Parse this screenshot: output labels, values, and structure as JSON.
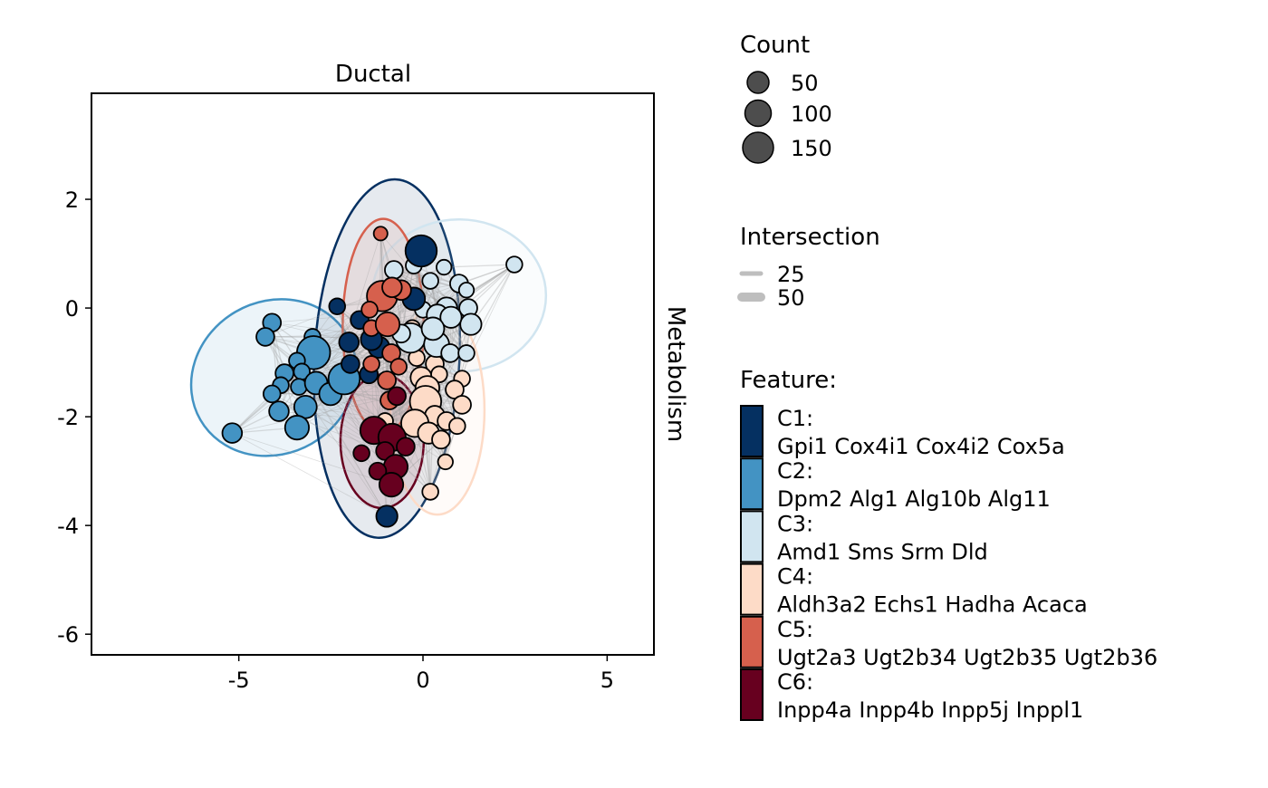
{
  "chart_data": {
    "type": "scatter",
    "title": "Ductal",
    "strip_label_right": "Metabolism",
    "xlabel": "",
    "ylabel": "",
    "xlim": [
      -9.0,
      6.27
    ],
    "ylim": [
      -6.38,
      3.95
    ],
    "x_ticks": [
      -5,
      0,
      5
    ],
    "x_tick_labels": [
      "-5",
      "0",
      "5"
    ],
    "y_ticks": [
      2,
      0,
      -2,
      -4,
      -6
    ],
    "y_tick_labels": [
      "2",
      "0",
      "-2",
      "-4",
      "-6"
    ],
    "grid": false,
    "legend_count": {
      "title": "Count",
      "entries": [
        {
          "label": "50",
          "value": 50
        },
        {
          "label": "100",
          "value": 100
        },
        {
          "label": "150",
          "value": 150
        }
      ],
      "color": "#4D4D4D"
    },
    "legend_intersection": {
      "title": "Intersection",
      "entries": [
        {
          "label": "25",
          "value": 25
        },
        {
          "label": "50",
          "value": 50
        }
      ],
      "color": "#BEBEBE"
    },
    "legend_feature": {
      "title": "Feature:",
      "entries": [
        {
          "id": "C1",
          "label": "C1:",
          "genes": "Gpi1 Cox4i1 Cox4i2 Cox5a",
          "color": "#053061"
        },
        {
          "id": "C2",
          "label": "C2:",
          "genes": "Dpm2 Alg1 Alg10b Alg11",
          "color": "#4393C3"
        },
        {
          "id": "C3",
          "label": "C3:",
          "genes": "Amd1 Sms Srm Dld",
          "color": "#D1E5F0"
        },
        {
          "id": "C4",
          "label": "C4:",
          "genes": "Aldh3a2 Echs1 Hadha Acaca",
          "color": "#FDDBC7"
        },
        {
          "id": "C5",
          "label": "C5:",
          "genes": "Ugt2a3 Ugt2b34 Ugt2b35 Ugt2b36",
          "color": "#D6604D"
        },
        {
          "id": "C6",
          "label": "C6:",
          "genes": "Inpp4a Inpp4b Inpp5j Inppl1",
          "color": "#67001F"
        }
      ]
    },
    "ellipses": [
      {
        "cluster": "C2",
        "cx": -4.05,
        "cy": -1.28,
        "a": 2.3,
        "b": 1.4,
        "angle": -30,
        "color": "#4393C3",
        "fill_opacity": 0.1
      },
      {
        "cluster": "C1",
        "cx": -0.98,
        "cy": -0.93,
        "a": 1.97,
        "b": 3.3,
        "angle": 3,
        "color": "#053061",
        "fill_opacity": 0.1
      },
      {
        "cluster": "C3",
        "cx": 0.98,
        "cy": 0.23,
        "a": 2.36,
        "b": 1.4,
        "angle": 0,
        "color": "#D1E5F0",
        "fill_opacity": 0.1
      },
      {
        "cluster": "C5",
        "cx": -1.08,
        "cy": -0.33,
        "a": 1.1,
        "b": 1.97,
        "angle": 0,
        "color": "#D6604D",
        "fill_opacity": 0.1
      },
      {
        "cluster": "C4",
        "cx": 0.39,
        "cy": -1.88,
        "a": 1.28,
        "b": 1.92,
        "angle": 0,
        "color": "#FDDBC7",
        "fill_opacity": 0.1
      },
      {
        "cluster": "C6",
        "cx": -1.11,
        "cy": -2.45,
        "a": 1.13,
        "b": 1.23,
        "angle": 0,
        "color": "#67001F",
        "fill_opacity": 0.1
      }
    ],
    "points": [
      {
        "c": "C2",
        "x": -4.1,
        "y": -0.27,
        "n": 40
      },
      {
        "c": "C2",
        "x": -4.28,
        "y": -0.53,
        "n": 40
      },
      {
        "c": "C2",
        "x": -3.0,
        "y": -0.53,
        "n": 30
      },
      {
        "c": "C2",
        "x": -2.97,
        "y": -0.82,
        "n": 170
      },
      {
        "c": "C2",
        "x": -3.42,
        "y": -0.97,
        "n": 30
      },
      {
        "c": "C2",
        "x": -3.29,
        "y": -1.17,
        "n": 30
      },
      {
        "c": "C2",
        "x": -3.76,
        "y": -1.2,
        "n": 40
      },
      {
        "c": "C2",
        "x": -3.86,
        "y": -1.42,
        "n": 30
      },
      {
        "c": "C2",
        "x": -3.37,
        "y": -1.45,
        "n": 30
      },
      {
        "c": "C2",
        "x": -2.9,
        "y": -1.38,
        "n": 70
      },
      {
        "c": "C2",
        "x": -4.1,
        "y": -1.58,
        "n": 35
      },
      {
        "c": "C2",
        "x": -2.51,
        "y": -1.58,
        "n": 70
      },
      {
        "c": "C2",
        "x": -2.14,
        "y": -1.3,
        "n": 150
      },
      {
        "c": "C2",
        "x": -3.19,
        "y": -1.82,
        "n": 70
      },
      {
        "c": "C2",
        "x": -3.91,
        "y": -1.9,
        "n": 50
      },
      {
        "c": "C2",
        "x": -3.42,
        "y": -2.2,
        "n": 80
      },
      {
        "c": "C2",
        "x": -5.18,
        "y": -2.3,
        "n": 50
      },
      {
        "c": "C4",
        "x": -0.29,
        "y": -0.37,
        "n": 30
      },
      {
        "c": "C4",
        "x": -0.17,
        "y": -0.92,
        "n": 30
      },
      {
        "c": "C4",
        "x": 0.32,
        "y": -1.03,
        "n": 40
      },
      {
        "c": "C4",
        "x": -0.05,
        "y": -1.28,
        "n": 60
      },
      {
        "c": "C4",
        "x": 0.44,
        "y": -1.22,
        "n": 30
      },
      {
        "c": "C4",
        "x": 1.06,
        "y": -1.3,
        "n": 30
      },
      {
        "c": "C4",
        "x": 0.86,
        "y": -1.5,
        "n": 40
      },
      {
        "c": "C4",
        "x": 0.12,
        "y": -1.47,
        "n": 80
      },
      {
        "c": "C4",
        "x": 0.07,
        "y": -1.72,
        "n": 150
      },
      {
        "c": "C4",
        "x": 1.06,
        "y": -1.78,
        "n": 40
      },
      {
        "c": "C4",
        "x": 0.32,
        "y": -1.98,
        "n": 50
      },
      {
        "c": "C4",
        "x": -0.22,
        "y": -2.12,
        "n": 110
      },
      {
        "c": "C4",
        "x": 0.64,
        "y": -2.08,
        "n": 40
      },
      {
        "c": "C4",
        "x": 0.93,
        "y": -2.17,
        "n": 30
      },
      {
        "c": "C4",
        "x": -1.03,
        "y": -2.08,
        "n": 30
      },
      {
        "c": "C4",
        "x": 0.15,
        "y": -2.3,
        "n": 60
      },
      {
        "c": "C4",
        "x": 0.49,
        "y": -2.42,
        "n": 40
      },
      {
        "c": "C4",
        "x": 0.61,
        "y": -2.83,
        "n": 25
      },
      {
        "c": "C4",
        "x": 0.2,
        "y": -3.38,
        "n": 30
      },
      {
        "c": "C3",
        "x": 2.48,
        "y": 0.8,
        "n": 30
      },
      {
        "c": "C3",
        "x": -0.79,
        "y": 0.7,
        "n": 40
      },
      {
        "c": "C3",
        "x": -0.25,
        "y": 0.78,
        "n": 30
      },
      {
        "c": "C3",
        "x": 0.57,
        "y": 0.75,
        "n": 25
      },
      {
        "c": "C3",
        "x": 0.2,
        "y": 0.5,
        "n": 30
      },
      {
        "c": "C3",
        "x": 0.98,
        "y": 0.45,
        "n": 40
      },
      {
        "c": "C3",
        "x": 1.18,
        "y": 0.33,
        "n": 25
      },
      {
        "c": "C3",
        "x": 0.0,
        "y": -0.03,
        "n": 30
      },
      {
        "c": "C3",
        "x": 0.64,
        "y": 0.0,
        "n": 60
      },
      {
        "c": "C3",
        "x": 1.23,
        "y": 0.0,
        "n": 40
      },
      {
        "c": "C3",
        "x": 1.3,
        "y": -0.3,
        "n": 60
      },
      {
        "c": "C3",
        "x": 0.39,
        "y": -0.13,
        "n": 60
      },
      {
        "c": "C3",
        "x": 0.76,
        "y": -0.17,
        "n": 60
      },
      {
        "c": "C3",
        "x": -0.34,
        "y": -0.55,
        "n": 130
      },
      {
        "c": "C3",
        "x": 0.37,
        "y": -0.67,
        "n": 90
      },
      {
        "c": "C3",
        "x": 0.74,
        "y": -0.83,
        "n": 40
      },
      {
        "c": "C3",
        "x": 1.18,
        "y": -0.83,
        "n": 30
      },
      {
        "c": "C3",
        "x": 0.27,
        "y": -0.38,
        "n": 70
      },
      {
        "c": "C3",
        "x": -0.59,
        "y": -0.47,
        "n": 40
      },
      {
        "c": "C1",
        "x": -0.05,
        "y": 1.05,
        "n": 150
      },
      {
        "c": "C1",
        "x": -2.33,
        "y": 0.03,
        "n": 30
      },
      {
        "c": "C1",
        "x": -1.72,
        "y": -0.22,
        "n": 40
      },
      {
        "c": "C1",
        "x": -2.01,
        "y": -0.63,
        "n": 50
      },
      {
        "c": "C1",
        "x": -1.97,
        "y": -1.03,
        "n": 40
      },
      {
        "c": "C1",
        "x": -1.47,
        "y": -1.22,
        "n": 40
      },
      {
        "c": "C1",
        "x": -1.2,
        "y": -0.72,
        "n": 60
      },
      {
        "c": "C1",
        "x": -0.25,
        "y": 0.17,
        "n": 70
      },
      {
        "c": "C1",
        "x": -0.98,
        "y": -3.83,
        "n": 60
      },
      {
        "c": "C1",
        "x": -1.4,
        "y": -0.58,
        "n": 60
      },
      {
        "c": "C5",
        "x": -1.15,
        "y": 1.37,
        "n": 20
      },
      {
        "c": "C5",
        "x": -1.11,
        "y": 0.22,
        "n": 140
      },
      {
        "c": "C5",
        "x": -0.59,
        "y": 0.33,
        "n": 50
      },
      {
        "c": "C5",
        "x": -0.84,
        "y": 0.38,
        "n": 50
      },
      {
        "c": "C5",
        "x": -1.45,
        "y": -0.03,
        "n": 30
      },
      {
        "c": "C5",
        "x": -1.4,
        "y": -0.37,
        "n": 30
      },
      {
        "c": "C5",
        "x": -0.96,
        "y": -0.3,
        "n": 80
      },
      {
        "c": "C5",
        "x": -0.86,
        "y": -0.83,
        "n": 40
      },
      {
        "c": "C5",
        "x": -1.4,
        "y": -1.03,
        "n": 30
      },
      {
        "c": "C5",
        "x": -0.66,
        "y": -1.08,
        "n": 30
      },
      {
        "c": "C5",
        "x": -0.98,
        "y": -1.33,
        "n": 40
      },
      {
        "c": "C5",
        "x": -0.91,
        "y": -1.7,
        "n": 40
      },
      {
        "c": "C6",
        "x": -0.71,
        "y": -1.62,
        "n": 40
      },
      {
        "c": "C6",
        "x": -1.33,
        "y": -2.25,
        "n": 110
      },
      {
        "c": "C6",
        "x": -0.84,
        "y": -2.38,
        "n": 110
      },
      {
        "c": "C6",
        "x": -0.47,
        "y": -2.55,
        "n": 40
      },
      {
        "c": "C6",
        "x": -1.03,
        "y": -2.63,
        "n": 40
      },
      {
        "c": "C6",
        "x": -1.67,
        "y": -2.67,
        "n": 30
      },
      {
        "c": "C6",
        "x": -0.74,
        "y": -2.92,
        "n": 80
      },
      {
        "c": "C6",
        "x": -1.23,
        "y": -3.0,
        "n": 35
      },
      {
        "c": "C6",
        "x": -0.86,
        "y": -3.25,
        "n": 80
      }
    ]
  }
}
